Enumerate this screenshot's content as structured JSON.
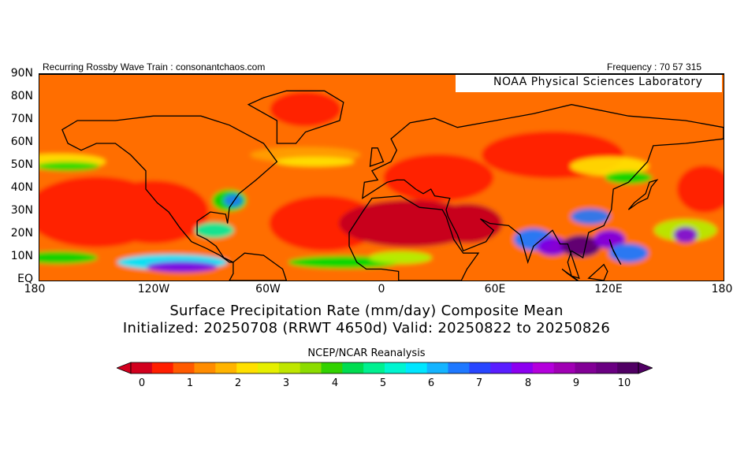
{
  "header": {
    "left_text": "Recurring Rossby Wave Train : consonantchaos.com",
    "right_text": "Frequency : 70 57 315",
    "lab": "NOAA Physical Sciences Laboratory"
  },
  "map": {
    "lat_labels": [
      "90N",
      "80N",
      "70N",
      "60N",
      "50N",
      "40N",
      "30N",
      "20N",
      "10N",
      "EQ"
    ],
    "lon_labels": [
      "180",
      "120W",
      "60W",
      "0",
      "60E",
      "120E",
      "180"
    ],
    "colors": {
      "dry_dark": "#c8001e",
      "dry": "#ff2400",
      "dry_orange": "#ff6e00",
      "orange": "#ffa000",
      "yellow": "#ffe600",
      "green_yellow": "#b4f000",
      "green": "#00dc00",
      "teal": "#00f0a0",
      "cyan": "#00e6ff",
      "blue": "#1e78ff",
      "purple": "#8000e0",
      "dark_purple": "#5a0078"
    }
  },
  "titles": {
    "line1": "Surface Precipitation Rate (mm/day) Composite Mean",
    "line2": "Initialized: 20250708 (RRWT 4650d) Valid: 20250822 to 20250826",
    "source": "NCEP/NCAR Reanalysis"
  },
  "colorbar": {
    "labels": [
      "0",
      "1",
      "2",
      "3",
      "4",
      "5",
      "6",
      "7",
      "8",
      "9",
      "10"
    ],
    "colors": [
      "#d2001e",
      "#ff1e00",
      "#ff5a00",
      "#ff8c00",
      "#ffb400",
      "#ffe000",
      "#e6ef00",
      "#bfe600",
      "#8cdc00",
      "#32d200",
      "#00dc50",
      "#00f090",
      "#00f5d0",
      "#00e6ff",
      "#14b4ff",
      "#1e78ff",
      "#2846ff",
      "#5a1eff",
      "#8c00f0",
      "#b400dc",
      "#a000b4",
      "#820096",
      "#6a0082",
      "#500064"
    ]
  }
}
